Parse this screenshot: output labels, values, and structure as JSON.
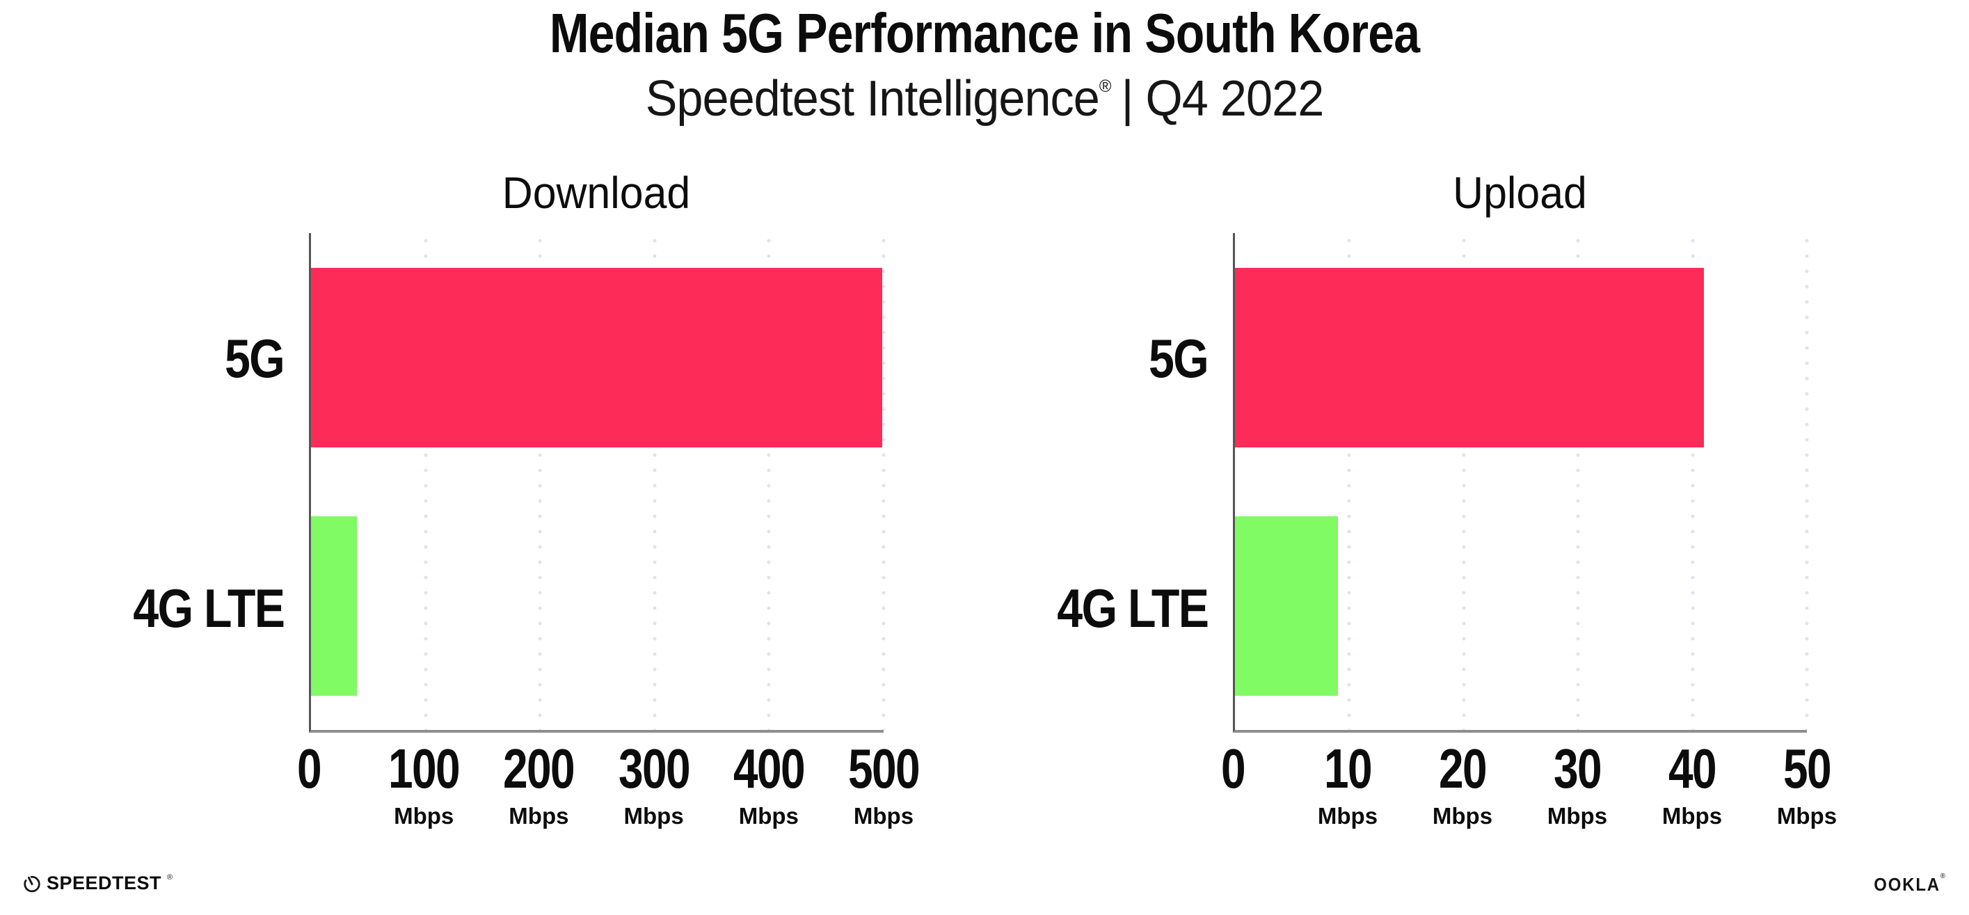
{
  "header": {
    "title": "Median 5G Performance in South Korea",
    "subtitle": {
      "brand": "Speedtest Intelligence",
      "reg": "®",
      "period": "| Q4 2022"
    }
  },
  "chart_data": [
    {
      "type": "bar",
      "orientation": "horizontal",
      "title": "Download",
      "categories": [
        "5G",
        "4G LTE"
      ],
      "values": [
        499,
        40
      ],
      "unit": "Mbps",
      "xlim": [
        0,
        500
      ],
      "xticks": [
        0,
        100,
        200,
        300,
        400,
        500
      ],
      "series_colors": [
        "#fc2b58",
        "#80fb64"
      ],
      "grid": "dotted-vertical",
      "legend": "none"
    },
    {
      "type": "bar",
      "orientation": "horizontal",
      "title": "Upload",
      "categories": [
        "5G",
        "4G LTE"
      ],
      "values": [
        41,
        9
      ],
      "unit": "Mbps",
      "xlim": [
        0,
        50
      ],
      "xticks": [
        0,
        10,
        20,
        30,
        40,
        50
      ],
      "series_colors": [
        "#fc2b58",
        "#80fb64"
      ],
      "grid": "dotted-vertical",
      "legend": "none"
    }
  ],
  "footer": {
    "speedtest": {
      "label": "SPEEDTEST",
      "reg": "®"
    },
    "ookla": {
      "label": "OOKLA",
      "reg": "®"
    }
  },
  "colors": {
    "bar_5g": "#fc2b58",
    "bar_4g": "#80fb64",
    "gridline": "#e2e2ee",
    "axis_line": "#8f8f8f",
    "spine": "#565656",
    "text": "#0c0c0c"
  }
}
